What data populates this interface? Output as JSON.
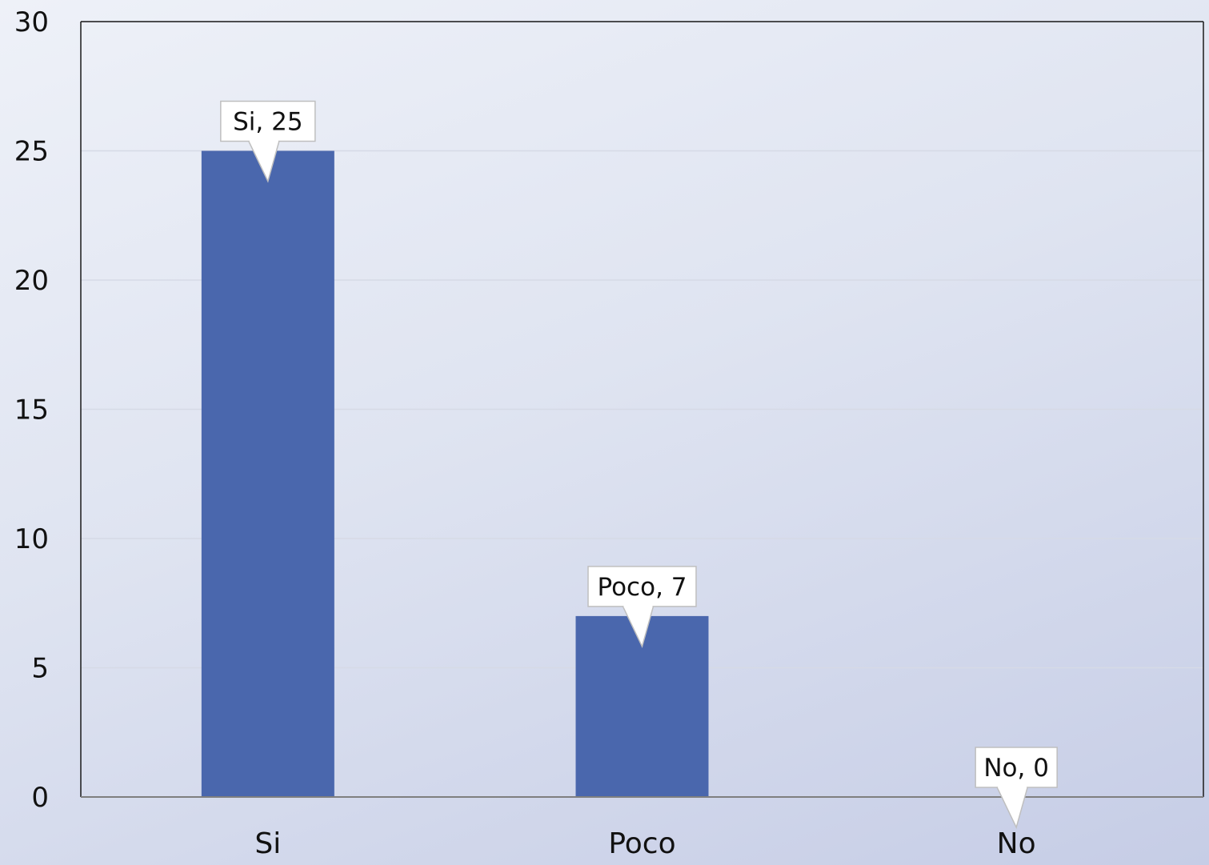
{
  "chart_data": {
    "type": "bar",
    "categories": [
      "Si",
      "Poco",
      "No"
    ],
    "values": [
      25,
      7,
      0
    ],
    "data_labels": [
      "Si, 25",
      "Poco, 7",
      "No, 0"
    ],
    "title": "",
    "xlabel": "",
    "ylabel": "",
    "ylim": [
      0,
      30
    ],
    "yticks": [
      0,
      5,
      10,
      15,
      20,
      25,
      30
    ],
    "grid": true,
    "legend": "none",
    "bar_color": "#4a67ad",
    "grid_color": "#d6dae6",
    "axis_color": "#7f7f7f"
  }
}
